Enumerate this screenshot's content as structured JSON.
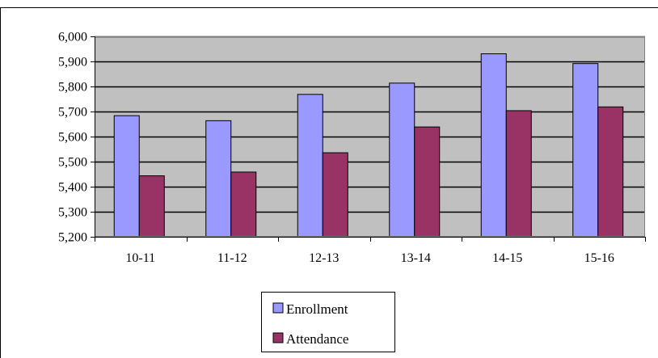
{
  "chart_data": {
    "type": "bar",
    "categories": [
      "10-11",
      "11-12",
      "12-13",
      "13-14",
      "14-15",
      "15-16"
    ],
    "series": [
      {
        "name": "Enrollment",
        "values": [
          5685,
          5665,
          5770,
          5815,
          5932,
          5893
        ],
        "color": "#9999FF"
      },
      {
        "name": "Attendance",
        "values": [
          5445,
          5460,
          5537,
          5640,
          5705,
          5720
        ],
        "color": "#993366"
      }
    ],
    "ylim": [
      5200,
      6000
    ],
    "yticks": [
      5200,
      5300,
      5400,
      5500,
      5600,
      5700,
      5800,
      5900,
      6000
    ],
    "ytick_labels": [
      "5,200",
      "5,300",
      "5,400",
      "5,500",
      "5,600",
      "5,700",
      "5,800",
      "5,900",
      "6,000"
    ],
    "plot_background": "#C0C0C0",
    "grid": true,
    "legend_position": "bottom"
  }
}
